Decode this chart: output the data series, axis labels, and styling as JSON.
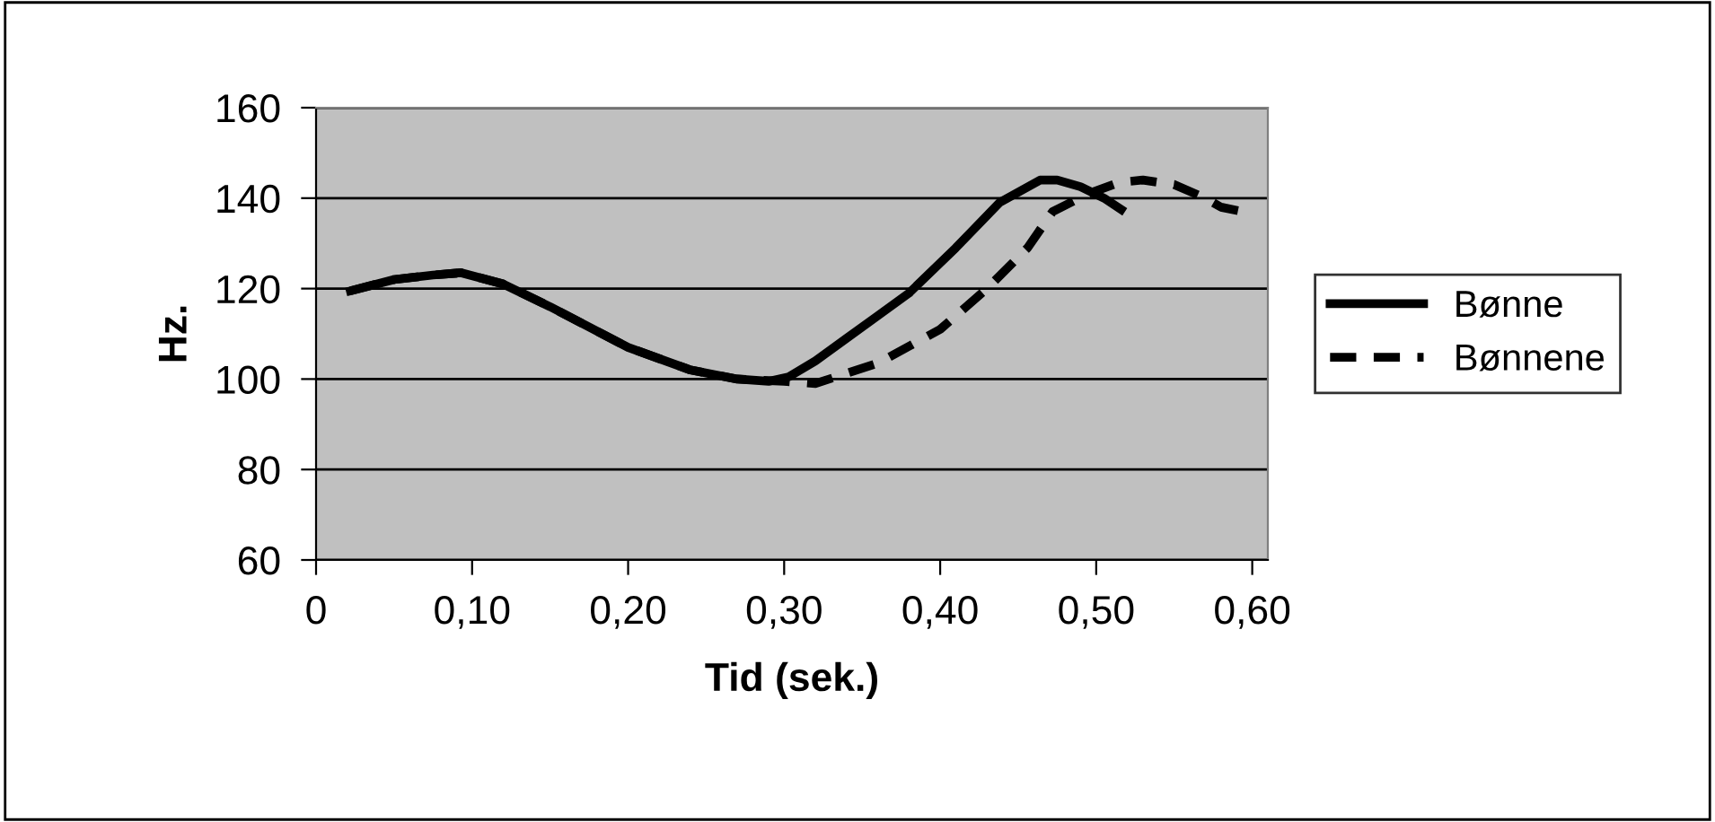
{
  "chart_data": {
    "type": "line",
    "xlabel": "Tid (sek.)",
    "ylabel": "Hz.",
    "xlim": [
      0,
      0.61
    ],
    "ylim": [
      60,
      160
    ],
    "xticks": [
      {
        "value": 0,
        "label": "0"
      },
      {
        "value": 0.1,
        "label": "0,10"
      },
      {
        "value": 0.2,
        "label": "0,20"
      },
      {
        "value": 0.3,
        "label": "0,30"
      },
      {
        "value": 0.4,
        "label": "0,40"
      },
      {
        "value": 0.5,
        "label": "0,50"
      },
      {
        "value": 0.6,
        "label": "0,60"
      }
    ],
    "yticks": [
      60,
      80,
      100,
      120,
      140,
      160
    ],
    "grid": "y",
    "legend": "right",
    "series": [
      {
        "name": "Bønne",
        "color": "#000000",
        "line_style": "solid",
        "x": [
          0.022,
          0.05,
          0.075,
          0.093,
          0.12,
          0.15,
          0.2,
          0.24,
          0.27,
          0.29,
          0.303,
          0.32,
          0.34,
          0.36,
          0.38,
          0.41,
          0.438,
          0.464,
          0.475,
          0.49,
          0.505,
          0.516
        ],
        "values": [
          119.5,
          122,
          123,
          123.5,
          121,
          116,
          107,
          102,
          100,
          99.5,
          100.5,
          104,
          109,
          114,
          119,
          129,
          139,
          144,
          144,
          142.5,
          140,
          137.5
        ]
      },
      {
        "name": "Bønnene",
        "color": "#000000",
        "line_style": "dashed",
        "x": [
          0.022,
          0.05,
          0.075,
          0.093,
          0.12,
          0.15,
          0.2,
          0.24,
          0.27,
          0.3,
          0.32,
          0.36,
          0.4,
          0.43,
          0.456,
          0.472,
          0.495,
          0.515,
          0.53,
          0.55,
          0.57,
          0.58,
          0.594
        ],
        "values": [
          119.5,
          122,
          123,
          123.5,
          121,
          116,
          107,
          102,
          100,
          99.5,
          99,
          103.5,
          111,
          120,
          129,
          137,
          141,
          143.5,
          144,
          143,
          140,
          138,
          137
        ]
      }
    ]
  }
}
